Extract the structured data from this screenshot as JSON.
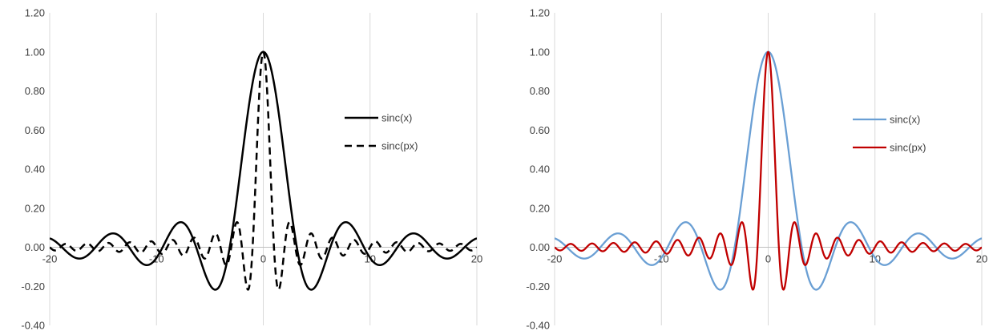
{
  "chart_data": [
    {
      "type": "line",
      "title": "",
      "xlabel": "",
      "ylabel": "",
      "xlim": [
        -20,
        20
      ],
      "ylim": [
        -0.4,
        1.2
      ],
      "x_ticks": [
        "-20",
        "-10",
        "0",
        "10",
        "20"
      ],
      "y_ticks": [
        "-0.40",
        "-0.20",
        "0.00",
        "0.20",
        "0.40",
        "0.60",
        "0.80",
        "1.00",
        "1.20"
      ],
      "grid": "vertical",
      "legend_position": "right",
      "x": [
        -20,
        -19,
        -18,
        -17,
        -16,
        -15,
        -14,
        -13,
        -12,
        -11,
        -10,
        -9,
        -8,
        -7,
        -6,
        -5,
        -4,
        -3,
        -2,
        -1,
        0,
        1,
        2,
        3,
        4,
        5,
        6,
        7,
        8,
        9,
        10,
        11,
        12,
        13,
        14,
        15,
        16,
        17,
        18,
        19,
        20
      ],
      "series": [
        {
          "name": "sinc(x)",
          "color": "#000000",
          "dash": "solid",
          "values": [
            0.046,
            0.008,
            -0.042,
            -0.057,
            -0.018,
            0.043,
            0.071,
            0.032,
            -0.045,
            -0.091,
            -0.054,
            0.046,
            0.124,
            0.094,
            -0.047,
            -0.192,
            -0.189,
            0.047,
            0.455,
            0.841,
            1.0,
            0.841,
            0.455,
            0.047,
            -0.189,
            -0.192,
            -0.047,
            0.094,
            0.124,
            0.046,
            -0.054,
            -0.091,
            -0.045,
            0.032,
            0.071,
            0.043,
            -0.018,
            -0.057,
            -0.042,
            0.008,
            0.046
          ]
        },
        {
          "name": "sinc(px)",
          "color": "#000000",
          "dash": "dashed"
        }
      ]
    },
    {
      "type": "line",
      "title": "",
      "xlabel": "",
      "ylabel": "",
      "xlim": [
        -20,
        20
      ],
      "ylim": [
        -0.4,
        1.2
      ],
      "x_ticks": [
        "-20",
        "-10",
        "0",
        "10",
        "20"
      ],
      "y_ticks": [
        "-0.40",
        "-0.20",
        "0.00",
        "0.20",
        "0.40",
        "0.60",
        "0.80",
        "1.00",
        "1.20"
      ],
      "grid": "vertical",
      "legend_position": "right",
      "x": [
        -20,
        -19,
        -18,
        -17,
        -16,
        -15,
        -14,
        -13,
        -12,
        -11,
        -10,
        -9,
        -8,
        -7,
        -6,
        -5,
        -4,
        -3,
        -2,
        -1,
        0,
        1,
        2,
        3,
        4,
        5,
        6,
        7,
        8,
        9,
        10,
        11,
        12,
        13,
        14,
        15,
        16,
        17,
        18,
        19,
        20
      ],
      "series": [
        {
          "name": "sinc(x)",
          "color": "#6a9fd4",
          "dash": "solid",
          "values": [
            0.046,
            0.008,
            -0.042,
            -0.057,
            -0.018,
            0.043,
            0.071,
            0.032,
            -0.045,
            -0.091,
            -0.054,
            0.046,
            0.124,
            0.094,
            -0.047,
            -0.192,
            -0.189,
            0.047,
            0.455,
            0.841,
            1.0,
            0.841,
            0.455,
            0.047,
            -0.189,
            -0.192,
            -0.047,
            0.094,
            0.124,
            0.046,
            -0.054,
            -0.091,
            -0.045,
            0.032,
            0.071,
            0.043,
            -0.018,
            -0.057,
            -0.042,
            0.008,
            0.046
          ]
        },
        {
          "name": "sinc(px)",
          "color": "#c00000",
          "dash": "solid"
        }
      ]
    }
  ]
}
